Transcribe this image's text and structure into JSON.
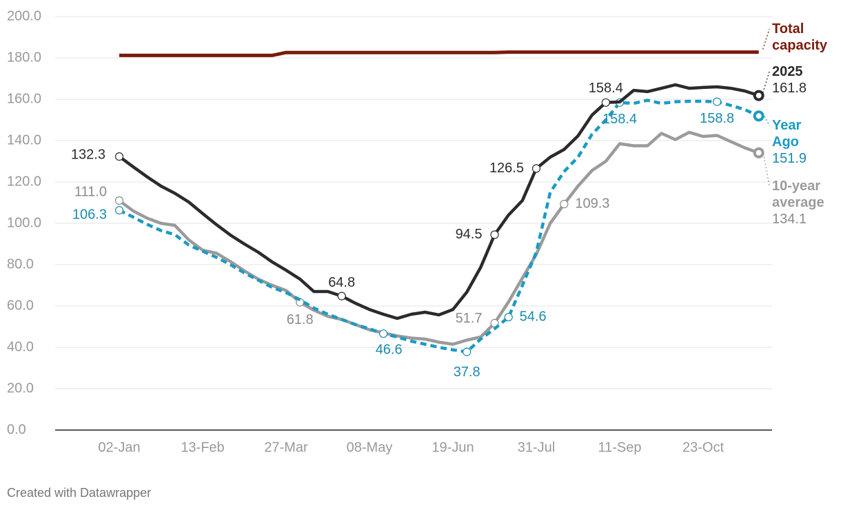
{
  "chart_data": {
    "type": "line",
    "categories": [
      "02-Jan",
      null,
      null,
      null,
      null,
      null,
      "13-Feb",
      null,
      null,
      null,
      null,
      null,
      "27-Mar",
      null,
      null,
      null,
      null,
      null,
      "08-May",
      null,
      null,
      null,
      null,
      null,
      "19-Jun",
      null,
      null,
      null,
      null,
      null,
      "31-Jul",
      null,
      null,
      null,
      null,
      null,
      "11-Sep",
      null,
      null,
      null,
      null,
      null,
      "23-Oct",
      null,
      null,
      null,
      null
    ],
    "ylim": [
      0,
      200
    ],
    "yticks": [
      {
        "value": 0,
        "label": "0.0"
      },
      {
        "value": 20,
        "label": "20.0"
      },
      {
        "value": 40,
        "label": "40.0"
      },
      {
        "value": 60,
        "label": "60.0"
      },
      {
        "value": 80,
        "label": "80.0"
      },
      {
        "value": 100,
        "label": "100.0"
      },
      {
        "value": 120,
        "label": "120.0"
      },
      {
        "value": 140,
        "label": "140.0"
      },
      {
        "value": 160,
        "label": "160.0"
      },
      {
        "value": 180,
        "label": "180.0"
      },
      {
        "value": 200,
        "label": "200.0"
      }
    ],
    "grid": true,
    "series": [
      {
        "name": "2025",
        "color": "#2b2b2b",
        "dashed": false,
        "values": [
          132.3,
          127.3,
          122.5,
          118,
          114.5,
          110.3,
          104.7,
          99.3,
          94.3,
          90,
          86,
          81.3,
          77.3,
          73,
          67,
          67,
          64.8,
          61.3,
          58.3,
          56,
          54,
          56,
          57,
          55.7,
          58.3,
          66.7,
          78.7,
          94.5,
          104,
          111,
          126.5,
          132,
          135.7,
          142.3,
          152.3,
          158.4,
          158.7,
          164.3,
          163.7,
          165.3,
          167,
          165.3,
          165.7,
          166,
          165.3,
          164,
          161.8
        ],
        "value_labels": [
          "132.3",
          null,
          null,
          null,
          null,
          null,
          null,
          null,
          null,
          null,
          null,
          null,
          null,
          null,
          null,
          null,
          "64.8",
          null,
          null,
          null,
          null,
          null,
          null,
          null,
          null,
          null,
          null,
          "94.5",
          null,
          null,
          "126.5",
          null,
          null,
          null,
          null,
          "158.4",
          null,
          null,
          null,
          null,
          null,
          null,
          null,
          null,
          null,
          null,
          "161.8"
        ]
      },
      {
        "name": "Year Ago",
        "color": "#1a9bc4",
        "dashed": true,
        "values": [
          106.3,
          103,
          99.5,
          96.5,
          94.5,
          89.5,
          86.5,
          83.5,
          80,
          76,
          72.5,
          69,
          66.5,
          63,
          59,
          56,
          53.5,
          51,
          49,
          46.6,
          45,
          43,
          41.5,
          40,
          38.8,
          37.8,
          44,
          49,
          54.6,
          70,
          86,
          115,
          125,
          132,
          143,
          150,
          158.4,
          158,
          159.5,
          158,
          158.8,
          159,
          159,
          158.8,
          157,
          155,
          151.9
        ],
        "value_labels": [
          "106.3",
          null,
          null,
          null,
          null,
          null,
          null,
          null,
          null,
          null,
          null,
          null,
          null,
          null,
          null,
          null,
          null,
          null,
          null,
          "46.6",
          null,
          null,
          null,
          null,
          null,
          "37.8",
          null,
          null,
          "54.6",
          null,
          null,
          null,
          null,
          null,
          null,
          null,
          "158.4",
          null,
          null,
          null,
          null,
          null,
          null,
          "158.8",
          null,
          null,
          "151.9"
        ]
      },
      {
        "name": "10-year average",
        "color": "#9b9b9b",
        "dashed": false,
        "values": [
          111.0,
          106,
          102.5,
          100,
          99,
          92,
          87,
          85.5,
          81.5,
          77,
          73,
          70,
          67.5,
          61.8,
          58,
          55,
          53.5,
          51,
          48.5,
          47,
          45.5,
          44.5,
          44,
          42.5,
          41.5,
          43.5,
          45,
          51.7,
          62,
          73.5,
          85,
          100,
          109.3,
          118,
          125.5,
          130,
          138.5,
          137.5,
          137.5,
          143.5,
          140.5,
          144,
          142,
          142.5,
          139.5,
          136.5,
          134.1
        ],
        "value_labels": [
          "111.0",
          null,
          null,
          null,
          null,
          null,
          null,
          null,
          null,
          null,
          null,
          null,
          null,
          "61.8",
          null,
          null,
          null,
          null,
          null,
          null,
          null,
          null,
          null,
          null,
          null,
          null,
          null,
          "51.7",
          null,
          null,
          null,
          null,
          "109.3",
          null,
          null,
          null,
          null,
          null,
          null,
          null,
          null,
          null,
          null,
          null,
          null,
          null,
          "134.1"
        ]
      },
      {
        "name": "Total capacity",
        "color": "#7a1a0a",
        "dashed": false,
        "values": [
          181.2,
          181.2,
          181.2,
          181.2,
          181.2,
          181.2,
          181.2,
          181.2,
          181.2,
          181.2,
          181.2,
          181.2,
          182.6,
          182.6,
          182.6,
          182.6,
          182.6,
          182.6,
          182.6,
          182.6,
          182.6,
          182.6,
          182.6,
          182.6,
          182.6,
          182.6,
          182.6,
          182.6,
          182.8,
          182.8,
          182.8,
          182.8,
          182.8,
          182.8,
          182.8,
          182.8,
          182.8,
          182.8,
          182.8,
          182.8,
          182.8,
          182.8,
          182.8,
          182.8,
          182.8,
          182.8,
          182.8
        ]
      }
    ],
    "footer": "Created with Datawrapper"
  }
}
